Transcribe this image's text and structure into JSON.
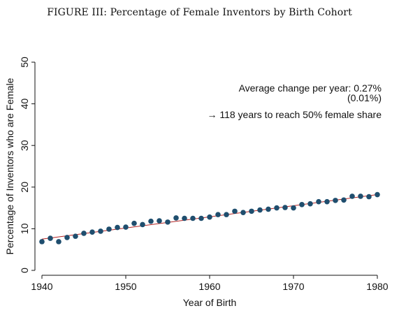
{
  "figure": {
    "title": "FIGURE III: Percentage of Female Inventors by Birth Cohort"
  },
  "chart_data": {
    "type": "scatter",
    "xlabel": "Year of Birth",
    "ylabel": "Percentage of Inventors who are Female",
    "xlim": [
      1939,
      1981
    ],
    "ylim": [
      0,
      50
    ],
    "xticks": [
      1940,
      1950,
      1960,
      1970,
      1980
    ],
    "yticks": [
      0,
      10,
      20,
      30,
      40,
      50
    ],
    "grid": false,
    "legend": "none",
    "x": [
      1940,
      1941,
      1942,
      1943,
      1944,
      1945,
      1946,
      1947,
      1948,
      1949,
      1950,
      1951,
      1952,
      1953,
      1954,
      1955,
      1956,
      1957,
      1958,
      1959,
      1960,
      1961,
      1962,
      1963,
      1964,
      1965,
      1966,
      1967,
      1968,
      1969,
      1970,
      1971,
      1972,
      1973,
      1974,
      1975,
      1976,
      1977,
      1978,
      1979,
      1980
    ],
    "y": [
      6.9,
      7.7,
      6.9,
      7.9,
      8.2,
      8.9,
      9.2,
      9.4,
      9.9,
      10.3,
      10.4,
      11.3,
      11.0,
      11.8,
      11.9,
      11.6,
      12.6,
      12.5,
      12.5,
      12.5,
      12.8,
      13.4,
      13.4,
      14.2,
      13.9,
      14.2,
      14.5,
      14.7,
      15.0,
      15.1,
      15.0,
      15.8,
      16.0,
      16.5,
      16.5,
      16.8,
      16.9,
      17.8,
      17.8,
      17.7,
      18.2
    ],
    "fit_line": {
      "x": [
        1940,
        1980
      ],
      "y": [
        7.5,
        18.2
      ]
    },
    "annotations": [
      "Average change per year: 0.27%",
      "(0.01%)",
      "→ 118 years to reach 50% female share"
    ],
    "colors": {
      "points": "#1f4e6e",
      "fit_line": "#b22222",
      "axes": "#111111"
    }
  }
}
